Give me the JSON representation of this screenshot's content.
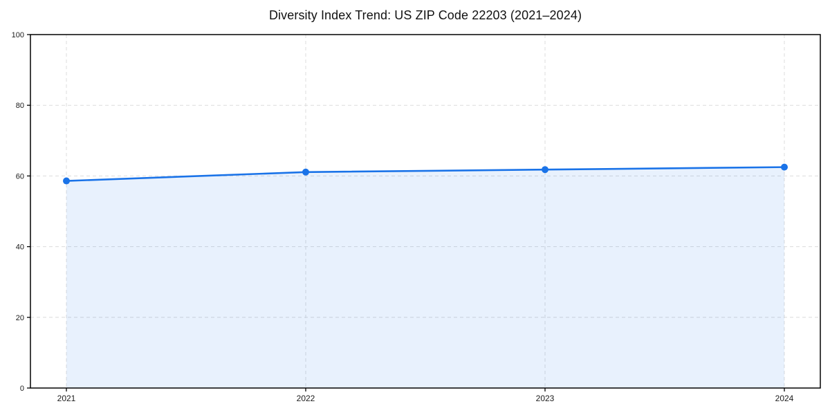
{
  "page": {
    "background": "#ffffff"
  },
  "chart_data": {
    "type": "area",
    "title": "Diversity Index Trend: US ZIP Code 22203 (2021–2024)",
    "categories": [
      "2021",
      "2022",
      "2023",
      "2024"
    ],
    "values": [
      58.6,
      61.1,
      61.8,
      62.5
    ],
    "series_name": "Diversity Index",
    "xlabel": "",
    "ylabel": "",
    "ylim": [
      0,
      100
    ],
    "yticks": [
      0,
      20,
      40,
      60,
      80,
      100
    ],
    "grid": "dashed-both-axes",
    "legend": "none",
    "marker": "circle",
    "colors": {
      "line": "#1a73e8",
      "marker": "#1a73e8",
      "area_fill": "#1a73e8",
      "area_opacity": "0.10",
      "grid": "#dcdcdc",
      "axis": "#000000",
      "tick_label": "#1a1a1a",
      "title": "#111111",
      "background": "#ffffff"
    }
  }
}
